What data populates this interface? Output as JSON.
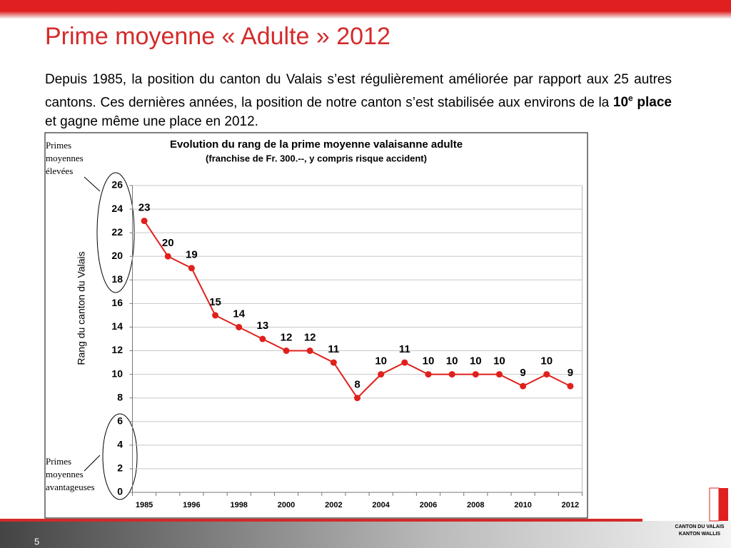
{
  "header": {
    "title": "Prime moyenne « Adulte » 2012"
  },
  "paragraph": {
    "before": "Depuis 1985, la position du canton du Valais s’est régulièrement améliorée par rapport aux 25 autres cantons. Ces dernières années, la position de notre canton s’est stabilisée aux environs de la ",
    "bold": "10",
    "sup": "e",
    "bold_after": " place",
    "after": " et gagne même une place en 2012."
  },
  "chart_data": {
    "type": "line",
    "title": "Evolution du rang de la prime moyenne valaisanne adulte",
    "subtitle": "(franchise de Fr. 300.--, y compris risque accident)",
    "y_label": "Rang du canton du Valais",
    "annotations": [
      "Primes moyennes élevées",
      "Primes moyennes avantageuses"
    ],
    "categories": [
      "1985",
      null,
      "1996",
      null,
      "1998",
      null,
      "2000",
      null,
      "2002",
      null,
      "2004",
      null,
      "2006",
      null,
      "2008",
      null,
      "2010",
      null,
      "2012"
    ],
    "series": [
      {
        "name": "Rang",
        "color": "#e0201c",
        "values": [
          23,
          20,
          19,
          15,
          14,
          13,
          12,
          12,
          11,
          8,
          10,
          11,
          10,
          10,
          10,
          10,
          9,
          10,
          9
        ]
      }
    ],
    "ylim": [
      0,
      26
    ],
    "yticks": [
      0,
      2,
      4,
      6,
      8,
      10,
      12,
      14,
      16,
      18,
      20,
      22,
      24,
      26
    ],
    "grid": true
  },
  "footer": {
    "page": "5",
    "logo_line1": "CANTON DU VALAIS",
    "logo_line2": "KANTON WALLIS"
  }
}
